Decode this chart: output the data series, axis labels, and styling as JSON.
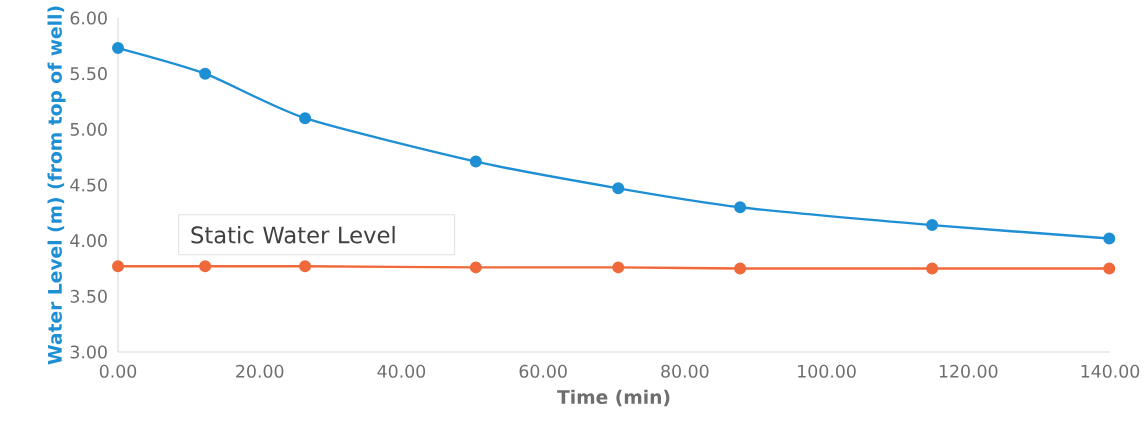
{
  "chart_data": {
    "type": "line",
    "xlabel": "Time (min)",
    "ylabel": "Water Level (m) (from top of well)",
    "x": [
      0,
      12.3,
      26.4,
      50.5,
      70.6,
      87.8,
      114.9,
      139.9
    ],
    "series": [
      {
        "color": "#1f8fd4",
        "values": [
          5.73,
          5.5,
          5.1,
          4.71,
          4.47,
          4.3,
          4.14,
          4.02
        ]
      },
      {
        "color": "#f0693a",
        "values": [
          3.77,
          3.77,
          3.77,
          3.76,
          3.76,
          3.75,
          3.75,
          3.75
        ]
      }
    ],
    "xlim": [
      0,
      140
    ],
    "ylim": [
      3,
      6
    ],
    "xticks": [
      {
        "value": 0,
        "label": "0.00"
      },
      {
        "value": 20,
        "label": "20.00"
      },
      {
        "value": 40,
        "label": "40.00"
      },
      {
        "value": 60,
        "label": "60.00"
      },
      {
        "value": 80,
        "label": "80.00"
      },
      {
        "value": 100,
        "label": "100.00"
      },
      {
        "value": 120,
        "label": "120.00"
      },
      {
        "value": 140,
        "label": "140.00"
      }
    ],
    "yticks": [
      {
        "value": 3,
        "label": "3.00"
      },
      {
        "value": 3.5,
        "label": "3.50"
      },
      {
        "value": 4,
        "label": "4.00"
      },
      {
        "value": 4.5,
        "label": "4.50"
      },
      {
        "value": 5,
        "label": "5.00"
      },
      {
        "value": 5.5,
        "label": "5.50"
      },
      {
        "value": 6,
        "label": "6.00"
      }
    ],
    "annotations": [
      "Static Water Level"
    ],
    "marker": "circle",
    "grid": false
  }
}
